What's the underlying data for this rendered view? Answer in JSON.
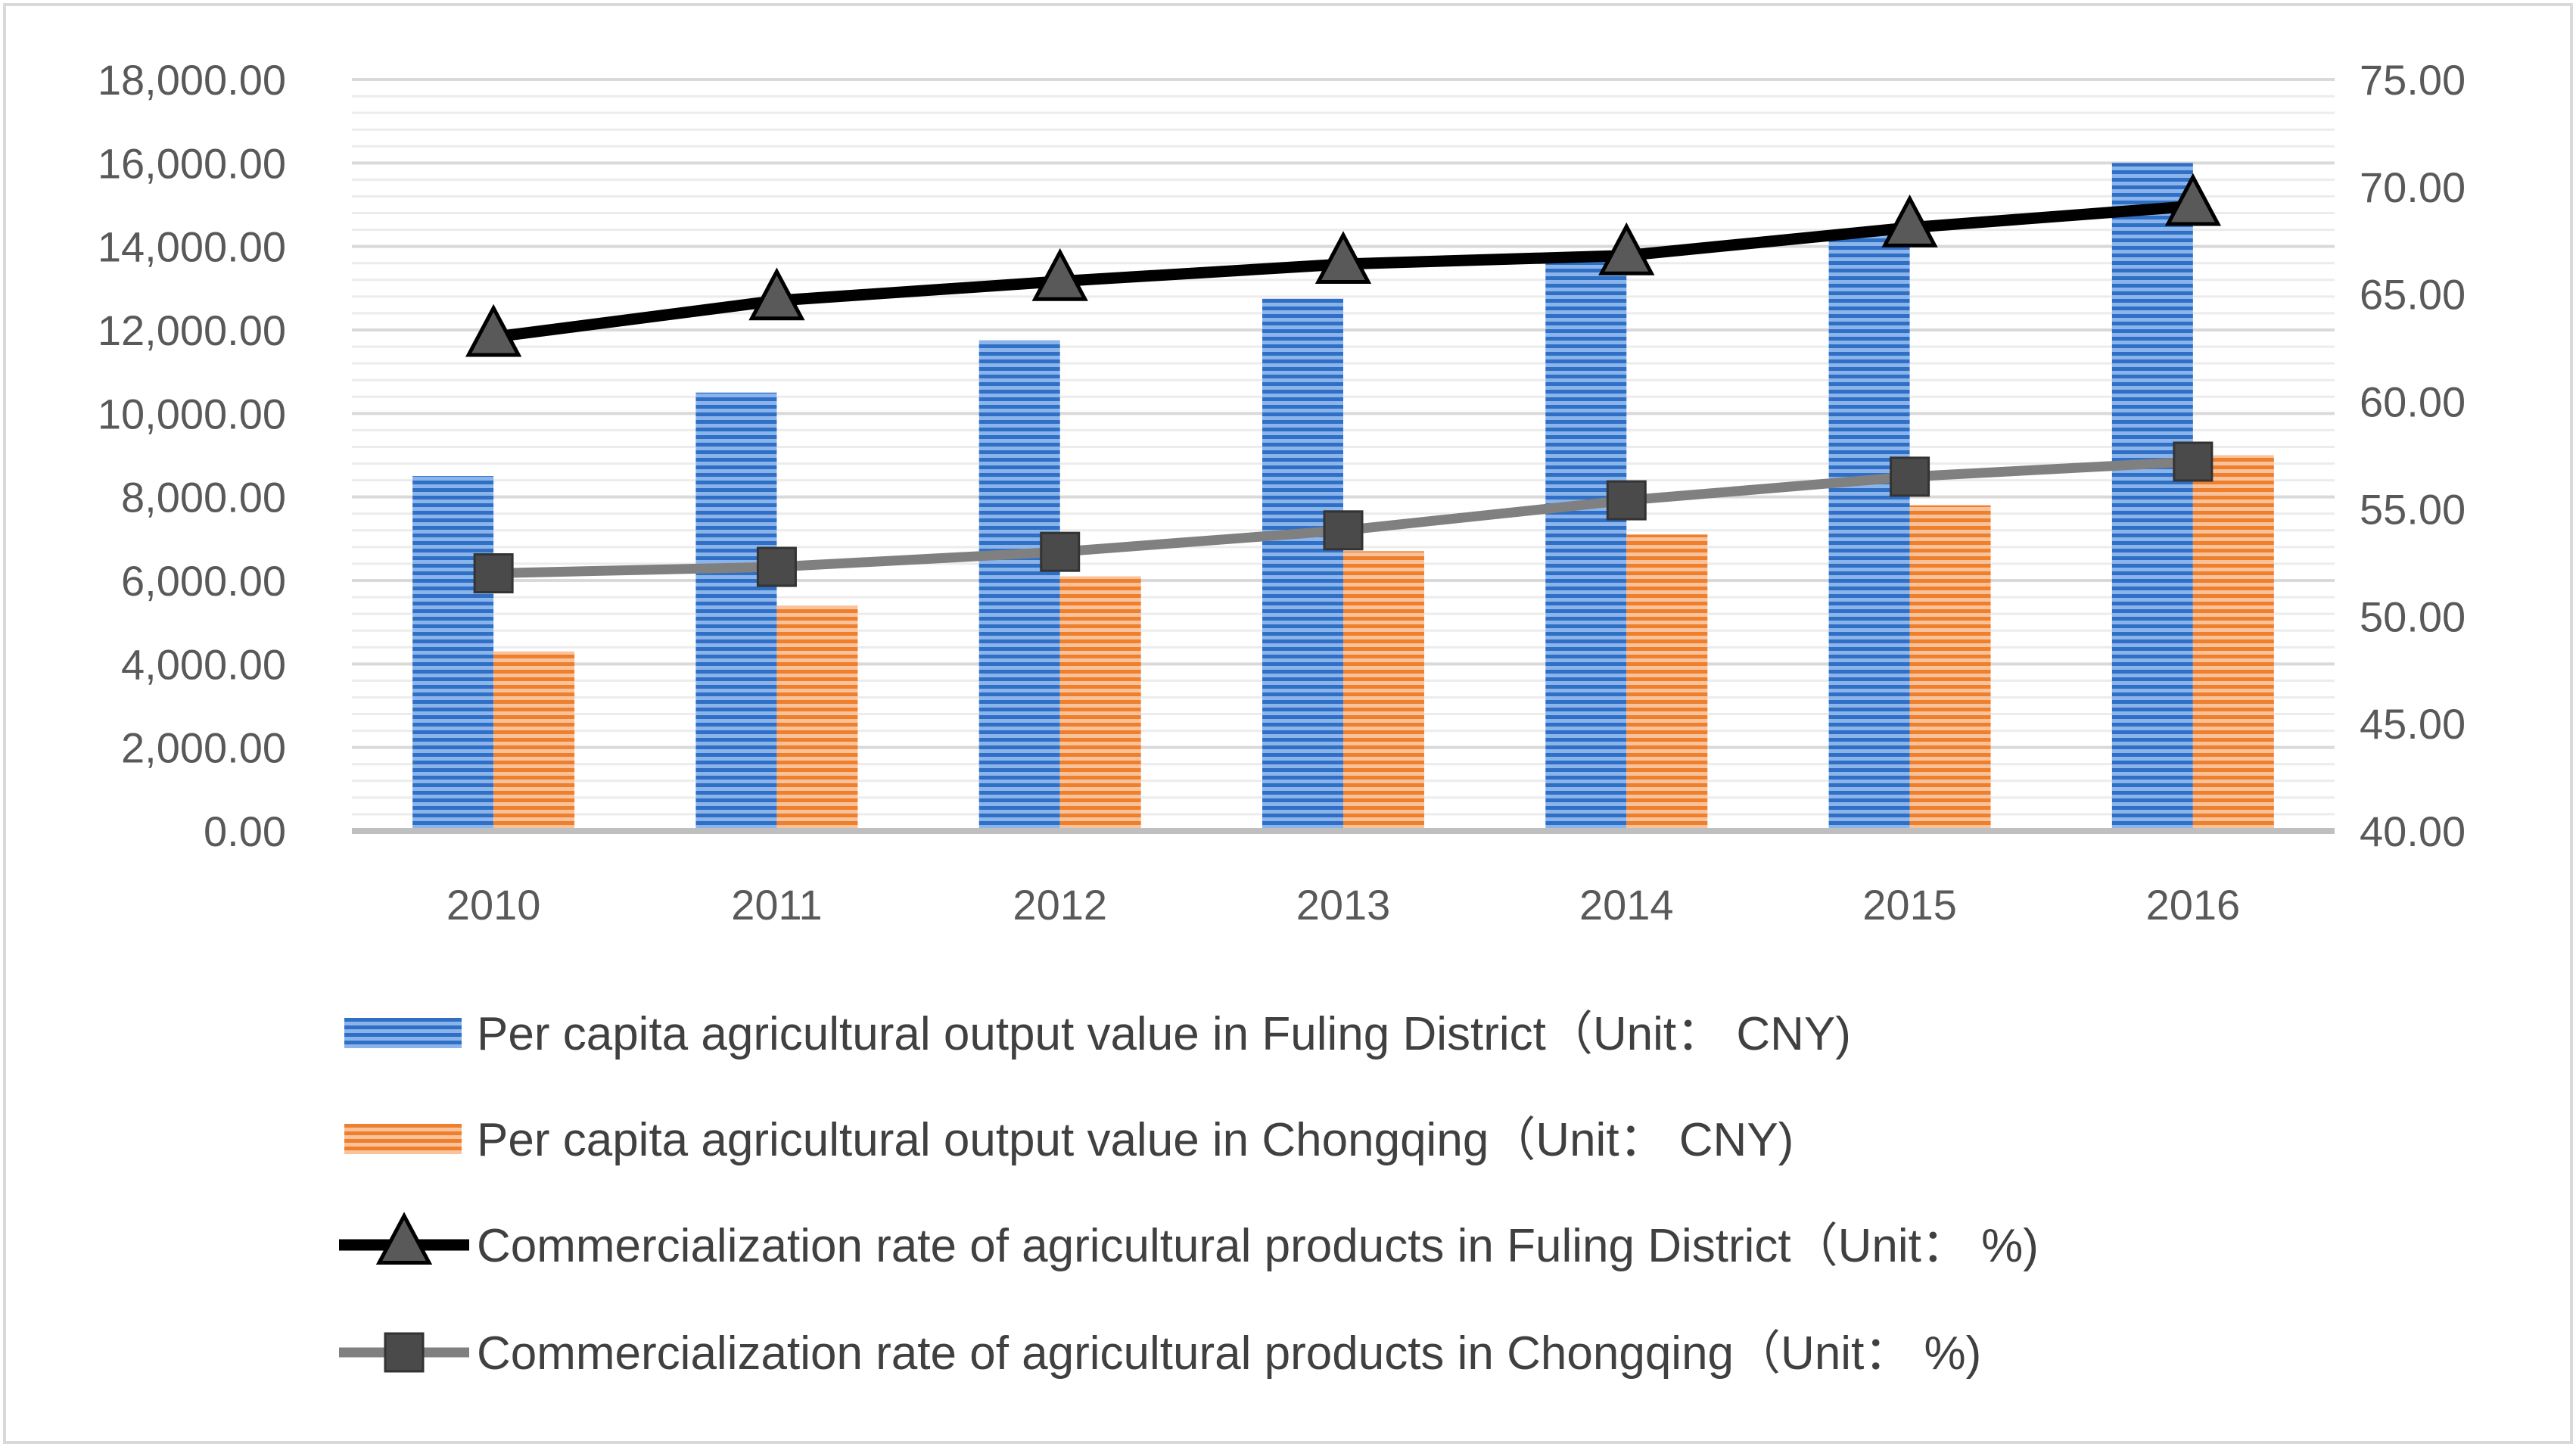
{
  "chart_data": {
    "type": "bar",
    "title": "",
    "categories": [
      "2010",
      "2011",
      "2012",
      "2013",
      "2014",
      "2015",
      "2016"
    ],
    "y_left": {
      "min": 0,
      "max": 18000,
      "step": 2000,
      "tick_labels": [
        "0.00",
        "2,000.00",
        "4,000.00",
        "6,000.00",
        "8,000.00",
        "10,000.00",
        "12,000.00",
        "14,000.00",
        "16,000.00",
        "18,000.00"
      ]
    },
    "y_right": {
      "min": 40,
      "max": 75,
      "step": 5,
      "tick_labels": [
        "40.00",
        "45.00",
        "50.00",
        "55.00",
        "60.00",
        "65.00",
        "70.00",
        "75.00"
      ]
    },
    "series": [
      {
        "name": "Per capita agricultural output value in Fuling District（Unit： CNY)",
        "kind": "bar",
        "axis": "left",
        "color": "#4a7fd0",
        "values": [
          8500,
          10500,
          11750,
          12750,
          13800,
          14300,
          16000
        ]
      },
      {
        "name": "Per capita agricultural output value in Chongqing（Unit： CNY)",
        "kind": "bar",
        "axis": "left",
        "color": "#f08a3c",
        "values": [
          4300,
          5400,
          6100,
          6700,
          7100,
          7800,
          9000
        ]
      },
      {
        "name": "Commercialization rate of agricultural products in Fuling District（Unit： %)",
        "kind": "line",
        "marker": "triangle",
        "axis": "right",
        "color": "#000000",
        "marker_color": "#595959",
        "values": [
          63.0,
          64.7,
          65.6,
          66.4,
          66.8,
          68.1,
          69.1
        ]
      },
      {
        "name": "Commercialization rate of agricultural products in Chongqing（Unit： %)",
        "kind": "line",
        "marker": "square",
        "axis": "right",
        "color": "#808080",
        "marker_color": "#4a4a4a",
        "values": [
          52.0,
          52.3,
          53.0,
          54.0,
          55.4,
          56.5,
          57.2
        ]
      }
    ]
  }
}
